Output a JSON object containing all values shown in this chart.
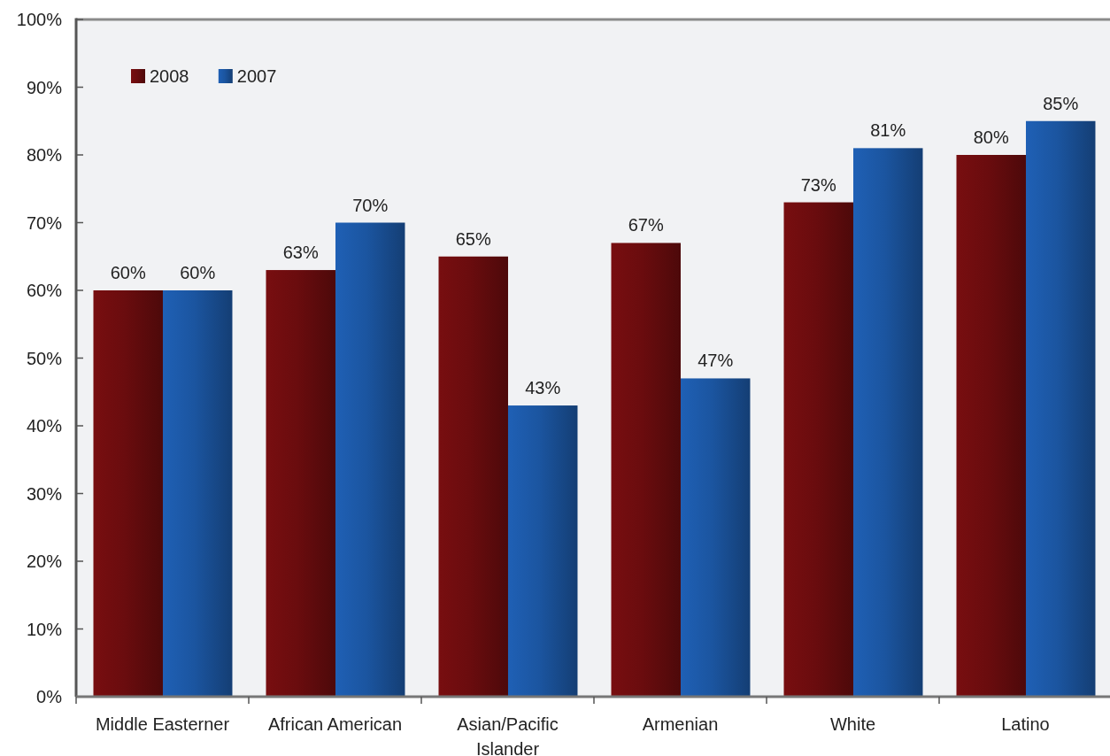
{
  "chart_data": {
    "type": "bar",
    "categories": [
      "Middle Easterner",
      "African American",
      "Asian/Pacific Islander",
      "Armenian",
      "White",
      "Latino"
    ],
    "series": [
      {
        "name": "2008",
        "color": "#6a0c0e",
        "values": [
          60,
          63,
          65,
          67,
          73,
          80
        ],
        "value_labels": [
          "60%",
          "63%",
          "65%",
          "67%",
          "73%",
          "80%"
        ]
      },
      {
        "name": "2007",
        "color": "#1b55a0",
        "values": [
          60,
          70,
          43,
          47,
          81,
          85
        ],
        "value_labels": [
          "60%",
          "70%",
          "43%",
          "47%",
          "81%",
          "85%"
        ]
      }
    ],
    "ylim": [
      0,
      100
    ],
    "yticks": [
      {
        "value": 0,
        "label": "0%"
      },
      {
        "value": 10,
        "label": "10%"
      },
      {
        "value": 20,
        "label": "20%"
      },
      {
        "value": 30,
        "label": "30%"
      },
      {
        "value": 40,
        "label": "40%"
      },
      {
        "value": 50,
        "label": "50%"
      },
      {
        "value": 60,
        "label": "60%"
      },
      {
        "value": 70,
        "label": "70%"
      },
      {
        "value": 80,
        "label": "80%"
      },
      {
        "value": 90,
        "label": "90%"
      },
      {
        "value": 100,
        "label": "100%"
      }
    ],
    "legend": "top left"
  }
}
